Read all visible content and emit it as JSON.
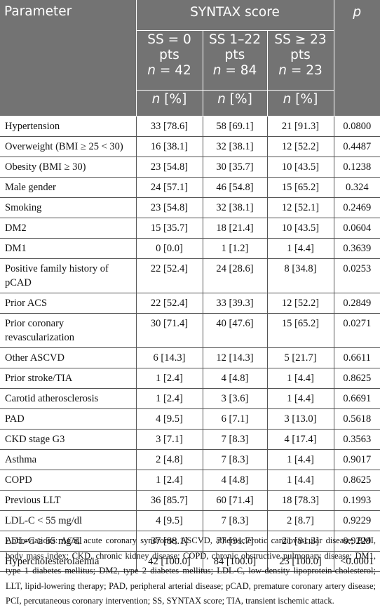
{
  "header": {
    "parameter": "Parameter",
    "syntax_score": "SYNTAX score",
    "p": "p",
    "groups": [
      {
        "line1": "SS = 0",
        "line2": "pts",
        "n_label": "n",
        "n_value": " = 42"
      },
      {
        "line1": "SS 1–22",
        "line2": "pts",
        "n_label": "n",
        "n_value": " = 84"
      },
      {
        "line1": "SS ≥ 23",
        "line2": "pts",
        "n_label": "n",
        "n_value": " = 23"
      }
    ],
    "npct_n": "n",
    "npct_rest": " [%]"
  },
  "rows": [
    {
      "label": "Hypertension",
      "c1": "33 [78.6]",
      "c2": "58 [69.1]",
      "c3": "21 [91.3]",
      "p": "0.0800"
    },
    {
      "label": "Overweight (BMI ≥ 25 < 30)",
      "c1": "16 [38.1]",
      "c2": "32 [38.1]",
      "c3": "12 [52.2]",
      "p": "0.4487"
    },
    {
      "label": "Obesity (BMI ≥ 30)",
      "c1": "23 [54.8]",
      "c2": "30 [35.7]",
      "c3": "10 [43.5]",
      "p": "0.1238"
    },
    {
      "label": "Male gender",
      "c1": "24 [57.1]",
      "c2": "46 [54.8]",
      "c3": "15 [65.2]",
      "p": "0.324"
    },
    {
      "label": "Smoking",
      "c1": "23 [54.8]",
      "c2": "32 [38.1]",
      "c3": "12 [52.1]",
      "p": "0.2469"
    },
    {
      "label": "DM2",
      "c1": "15 [35.7]",
      "c2": "18 [21.4]",
      "c3": "10 [43.5]",
      "p": "0.0604"
    },
    {
      "label": "DM1",
      "c1": "0 [0.0]",
      "c2": "1 [1.2]",
      "c3": "1 [4.4]",
      "p": "0.3639"
    },
    {
      "label": "Positive family history of pCAD",
      "c1": "22 [52.4]",
      "c2": "24 [28.6]",
      "c3": "8 [34.8]",
      "p": "0.0253"
    },
    {
      "label": "Prior ACS",
      "c1": "22 [52.4]",
      "c2": "33 [39.3]",
      "c3": "12 [52.2]",
      "p": "0.2849"
    },
    {
      "label": "Prior coronary revascularization",
      "c1": "30 [71.4]",
      "c2": "40 [47.6]",
      "c3": "15 [65.2]",
      "p": "0.0271"
    },
    {
      "label": "Other ASCVD",
      "c1": "6 [14.3]",
      "c2": "12 [14.3]",
      "c3": "5 [21.7]",
      "p": "0.6611"
    },
    {
      "label": "Prior stroke/TIA",
      "c1": "1 [2.4]",
      "c2": "4 [4.8]",
      "c3": "1 [4.4]",
      "p": "0.8625"
    },
    {
      "label": "Carotid atherosclerosis",
      "c1": "1 [2.4]",
      "c2": "3 [3.6]",
      "c3": "1 [4.4]",
      "p": "0.6691"
    },
    {
      "label": "PAD",
      "c1": "4 [9.5]",
      "c2": "6 [7.1]",
      "c3": "3 [13.0]",
      "p": "0.5618"
    },
    {
      "label": "CKD stage G3",
      "c1": "3 [7.1]",
      "c2": "7 [8.3]",
      "c3": "4 [17.4]",
      "p": "0.3563"
    },
    {
      "label": "Asthma",
      "c1": "2 [4.8]",
      "c2": "7 [8.3]",
      "c3": "1 [4.4]",
      "p": "0.9017"
    },
    {
      "label": "COPD",
      "c1": "1 [2.4]",
      "c2": "4 [4.8]",
      "c3": "1 [4.4]",
      "p": "0.8625"
    },
    {
      "label": "Previous LLT",
      "c1": "36 [85.7]",
      "c2": "60 [71.4]",
      "c3": "18 [78.3]",
      "p": "0.1993"
    },
    {
      "label": "LDL-C < 55 mg/dl",
      "c1": "4 [9.5]",
      "c2": "7 [8.3]",
      "c3": "2 [8.7]",
      "p": "0.9229"
    },
    {
      "label": "LDL-C ≥ 55 mg/dl",
      "c1": "37 [88.1]",
      "c2": "77 [91.7]",
      "c3": "21 [91.3]",
      "p": "0.9229"
    },
    {
      "label": "Hypercholesterolaemia",
      "c1": "42 [100.0]",
      "c2": "84 [100.0]",
      "c3": "23 [100.0]",
      "p": "<0.0001"
    }
  ],
  "abbreviations": "Abbreviations: ACS, acute coronary syndrome; ASCVD, atherosclerotic cardiovascular disease; BMI, body mass index; CKD, chronic kidney disease; COPD, chronic obstructive pulmonary disease; DM1, type 1 diabetes mellitus; DM2, type 2 diabetes mellitus; LDL-C, low-density lipoprotein-cholesterol; LLT, lipid-lowering therapy; PAD, peripheral arterial disease; pCAD, premature coronary artery disease; PCI, percutaneous coronary intervention; SS, SYNTAX score; TIA, transient ischemic attack."
}
